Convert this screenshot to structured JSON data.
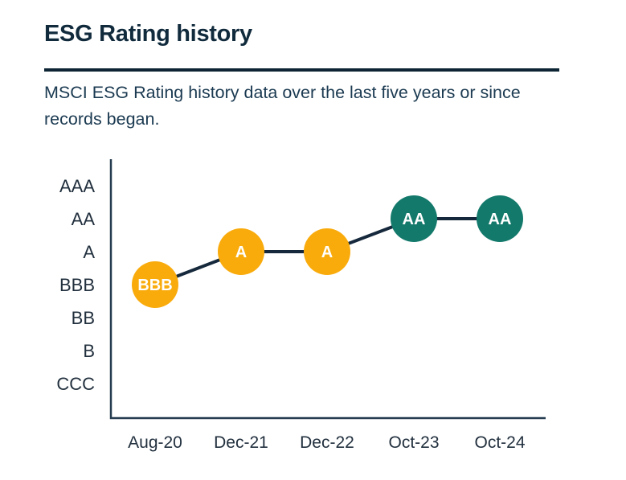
{
  "header": {
    "title": "ESG Rating history",
    "subtitle": "MSCI ESG Rating history data over the last five years or since records began."
  },
  "chart_data": {
    "type": "line",
    "title": "ESG Rating history",
    "xlabel": "",
    "ylabel": "",
    "grid": false,
    "legend": "none",
    "x_categories": [
      "Aug-20",
      "Dec-21",
      "Dec-22",
      "Oct-23",
      "Oct-24"
    ],
    "y_categories": [
      "AAA",
      "AA",
      "A",
      "BBB",
      "BB",
      "B",
      "CCC"
    ],
    "points": [
      {
        "x": "Aug-20",
        "rating": "BBB",
        "color": "#F9AB0C"
      },
      {
        "x": "Dec-21",
        "rating": "A",
        "color": "#F9AB0C"
      },
      {
        "x": "Dec-22",
        "rating": "A",
        "color": "#F9AB0C"
      },
      {
        "x": "Oct-23",
        "rating": "AA",
        "color": "#13796B"
      },
      {
        "x": "Oct-24",
        "rating": "AA",
        "color": "#13796B"
      }
    ],
    "colors": {
      "line": "#16293C",
      "axis": "#253C50",
      "tick_label": "#22303E",
      "point_label": "#FFFFFF",
      "yellow": "#F9AB0C",
      "teal": "#13796B"
    }
  }
}
